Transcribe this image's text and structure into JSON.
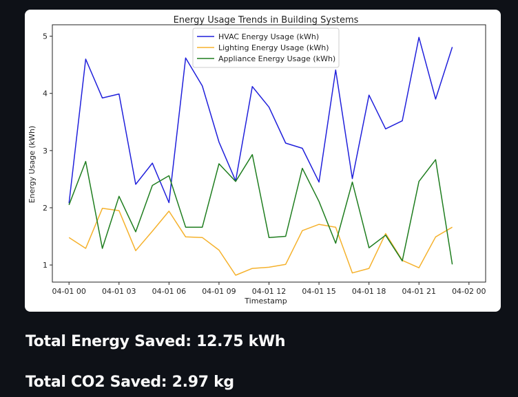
{
  "metrics": {
    "energy_saved": "Total Energy Saved: 12.75 kWh",
    "co2_saved": "Total CO2 Saved: 2.97 kg"
  },
  "chart_data": {
    "type": "line",
    "title": "Energy Usage Trends in Building Systems",
    "xlabel": "Timestamp",
    "ylabel": "Energy Usage (kWh)",
    "ylim": [
      0.7,
      5.2
    ],
    "xlim": [
      -1,
      25
    ],
    "grid": false,
    "legend_position": "top-center",
    "x": [
      0,
      1,
      2,
      3,
      4,
      5,
      6,
      7,
      8,
      9,
      10,
      11,
      12,
      13,
      14,
      15,
      16,
      17,
      18,
      19,
      20,
      21,
      22,
      23
    ],
    "x_ticks": [
      {
        "value": 0,
        "label": "04-01 00"
      },
      {
        "value": 3,
        "label": "04-01 03"
      },
      {
        "value": 6,
        "label": "04-01 06"
      },
      {
        "value": 9,
        "label": "04-01 09"
      },
      {
        "value": 12,
        "label": "04-01 12"
      },
      {
        "value": 15,
        "label": "04-01 15"
      },
      {
        "value": 18,
        "label": "04-01 18"
      },
      {
        "value": 21,
        "label": "04-01 21"
      },
      {
        "value": 24,
        "label": "04-02 00"
      }
    ],
    "y_ticks": [
      1,
      2,
      3,
      4,
      5
    ],
    "series": [
      {
        "name": "HVAC Energy Usage (kWh)",
        "color": "#1f1fdb",
        "values": [
          2.08,
          4.6,
          3.92,
          3.99,
          2.41,
          2.78,
          2.09,
          4.62,
          4.13,
          3.15,
          2.47,
          4.12,
          3.76,
          3.13,
          3.04,
          2.45,
          4.41,
          2.51,
          3.97,
          3.38,
          3.52,
          4.98,
          3.9,
          4.81
        ]
      },
      {
        "name": "Lighting Energy Usage (kWh)",
        "color": "#f5b12b",
        "values": [
          1.48,
          1.29,
          1.99,
          1.95,
          1.25,
          1.59,
          1.94,
          1.49,
          1.48,
          1.26,
          0.82,
          0.94,
          0.96,
          1.01,
          1.6,
          1.71,
          1.66,
          0.86,
          0.94,
          1.55,
          1.08,
          0.95,
          1.49,
          1.66
        ]
      },
      {
        "name": "Appliance Energy Usage (kWh)",
        "color": "#1e7d1e",
        "values": [
          2.05,
          2.81,
          1.29,
          2.2,
          1.58,
          2.39,
          2.56,
          1.66,
          1.66,
          2.77,
          2.46,
          2.93,
          1.48,
          1.5,
          2.69,
          2.11,
          1.38,
          2.45,
          1.3,
          1.52,
          1.07,
          2.46,
          2.84,
          1.01
        ]
      }
    ]
  }
}
